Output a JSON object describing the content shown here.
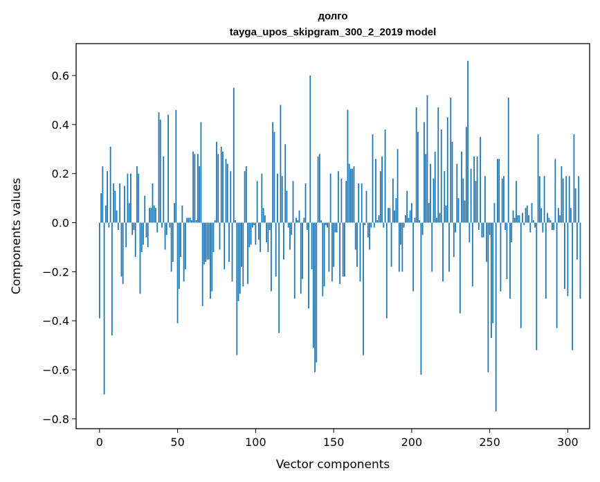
{
  "chart_data": {
    "type": "bar",
    "title": "долго",
    "subtitle": "tayga_upos_skipgram_300_2_2019 model",
    "xlabel": "Vector components",
    "ylabel": "Components values",
    "xlim": [
      -15,
      314
    ],
    "ylim": [
      -0.84,
      0.73
    ],
    "xticks": [
      0,
      50,
      100,
      150,
      200,
      250,
      300
    ],
    "yticks": [
      -0.8,
      -0.6,
      -0.4,
      -0.2,
      0.0,
      0.2,
      0.4,
      0.6
    ],
    "ytick_labels": [
      "−0.8",
      "−0.6",
      "−0.4",
      "−0.2",
      "0.0",
      "0.2",
      "0.4",
      "0.6"
    ],
    "color": "#1f77b4",
    "values": [
      -0.39,
      0.12,
      0.23,
      -0.7,
      0.07,
      0.21,
      -0.02,
      0.31,
      -0.46,
      0.16,
      0.13,
      0.05,
      -0.03,
      0.16,
      -0.22,
      -0.25,
      0.15,
      -0.1,
      0.2,
      0.08,
      0.2,
      -0.05,
      -0.03,
      -0.14,
      0.23,
      0.2,
      -0.29,
      -0.12,
      -0.09,
      0.11,
      -0.06,
      -0.1,
      0.06,
      0.06,
      0.16,
      0.07,
      0.06,
      -0.04,
      0.45,
      0.42,
      -0.02,
      0.27,
      -0.11,
      -0.05,
      0.44,
      -0.02,
      -0.2,
      -0.16,
      0.08,
      0.46,
      -0.41,
      -0.27,
      -0.14,
      0.07,
      -0.24,
      -0.19,
      0.02,
      0.02,
      0.02,
      0.01,
      0.29,
      0.28,
      0.01,
      0.28,
      0.23,
      0.41,
      -0.34,
      -0.17,
      -0.16,
      -0.15,
      -0.15,
      -0.31,
      -0.28,
      -0.12,
      0.01,
      0.33,
      0.28,
      -0.11,
      0.31,
      0.29,
      -0.19,
      0.26,
      0.24,
      -0.16,
      0.21,
      -0.24,
      0.55,
      0.01,
      -0.54,
      -0.32,
      -0.29,
      -0.18,
      -0.26,
      0.21,
      0.23,
      -0.25,
      -0.1,
      -0.09,
      -0.02,
      -0.01,
      -0.09,
      0.17,
      -0.07,
      -0.12,
      0.2,
      0.06,
      0.03,
      -0.08,
      -0.12,
      -0.03,
      -0.28,
      0.41,
      0.37,
      -0.22,
      0.2,
      -0.45,
      0.48,
      0.19,
      -0.15,
      0.32,
      0.13,
      -0.02,
      -0.11,
      -0.05,
      0.17,
      -0.31,
      0.02,
      0.01,
      0.05,
      -0.29,
      -0.23,
      0.02,
      0.16,
      -0.03,
      -0.35,
      0.6,
      -0.19,
      -0.51,
      -0.61,
      -0.57,
      0.27,
      0.28,
      0.01,
      -0.3,
      -0.26,
      -0.01,
      -0.02,
      -0.2,
      0.2,
      -0.24,
      -0.18,
      -0.04,
      -0.04,
      0.21,
      -0.25,
      0.18,
      -0.22,
      -0.22,
      0.17,
      0.46,
      0.24,
      0.22,
      0.22,
      0.23,
      -0.11,
      -0.18,
      0.16,
      -0.24,
      0.16,
      -0.54,
      -0.01,
      0.13,
      -0.06,
      -0.11,
      -0.02,
      0.36,
      -0.02,
      0.26,
      0.01,
      0.03,
      0.21,
      0.27,
      -0.02,
      0.38,
      -0.39,
      0.06,
      0.06,
      -0.18,
      0.18,
      0.05,
      0.1,
      0.3,
      -0.2,
      -0.09,
      -0.2,
      -0.02,
      0.03,
      0.13,
      0.02,
      0.05,
      0.08,
      -0.28,
      0.02,
      0.47,
      0.37,
      0.01,
      -0.62,
      -0.05,
      0.41,
      0.28,
      0.52,
      0.08,
      0.24,
      -0.2,
      0.18,
      0.29,
      0.02,
      0.47,
      0.04,
      0.38,
      -0.24,
      0.21,
      0.07,
      0.43,
      -0.2,
      0.51,
      0.33,
      -0.14,
      -0.04,
      0.24,
      0.1,
      -0.37,
      0.29,
      0.18,
      0.09,
      0.39,
      0.66,
      -0.08,
      0.22,
      -0.26,
      0.27,
      0.17,
      0.27,
      -0.03,
      0.35,
      -0.06,
      -0.06,
      0.19,
      -0.16,
      -0.61,
      -0.05,
      -0.47,
      -0.41,
      0.08,
      -0.77,
      0.26,
      0.26,
      -0.28,
      0.18,
      0.19,
      -0.03,
      -0.23,
      0.51,
      -0.31,
      -0.08,
      0.05,
      0.02,
      0.17,
      0.03,
      0.03,
      -0.43,
      0.04,
      -0.01,
      0.06,
      0.07,
      0.03,
      -0.04,
      0.08,
      0.01,
      -0.02,
      -0.52,
      0.36,
      0.19,
      0.06,
      -0.04,
      0.19,
      -0.31,
      0.04,
      0.02,
      0.01,
      -0.03,
      -0.03,
      0.26,
      -0.43,
      0.06,
      0.03,
      0.23,
      0.18,
      -0.27,
      0.19,
      -0.3,
      0.19,
      0.06,
      -0.52,
      0.36,
      0.14,
      -0.15,
      0.19,
      -0.31
    ]
  }
}
